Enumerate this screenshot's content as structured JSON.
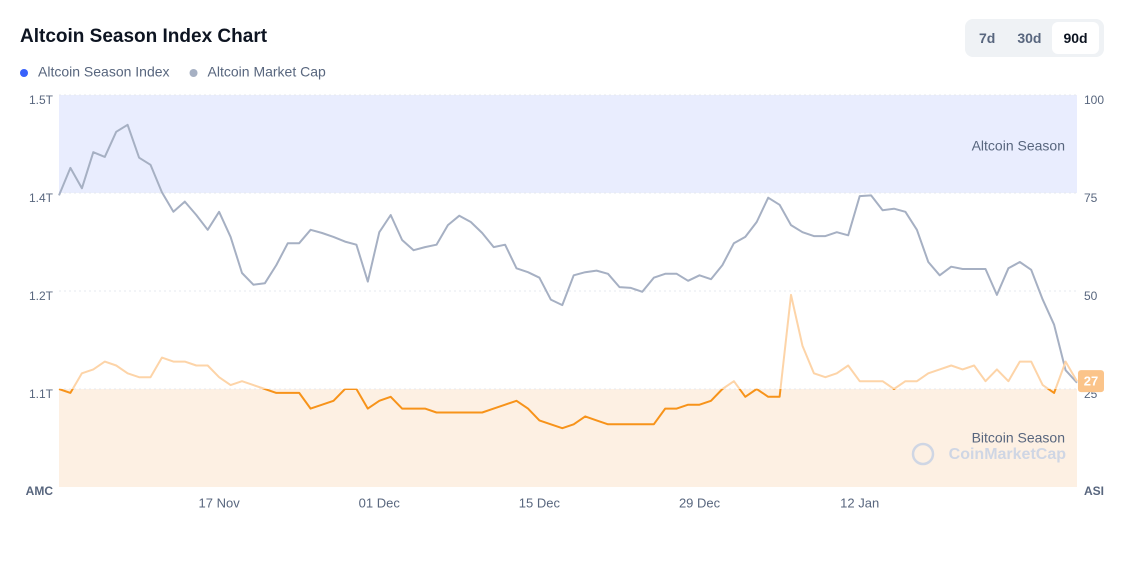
{
  "header": {
    "title": "Altcoin Season Index Chart"
  },
  "controls": {
    "ranges": [
      "7d",
      "30d",
      "90d"
    ],
    "active": 2
  },
  "chart_data": {
    "type": "line",
    "y_label": "AMC",
    "y2_label": "ASI",
    "watermark": "CoinMarketCap",
    "categories": [
      null,
      null,
      null,
      null,
      null,
      null,
      null,
      null,
      null,
      null,
      null,
      null,
      null,
      null,
      "17 Nov",
      null,
      null,
      null,
      null,
      null,
      null,
      null,
      null,
      null,
      null,
      null,
      null,
      null,
      "01 Dec",
      null,
      null,
      null,
      null,
      null,
      null,
      null,
      null,
      null,
      null,
      null,
      null,
      null,
      "15 Dec",
      null,
      null,
      null,
      null,
      null,
      null,
      null,
      null,
      null,
      null,
      null,
      null,
      null,
      "29 Dec",
      null,
      null,
      null,
      null,
      null,
      null,
      null,
      null,
      null,
      null,
      null,
      null,
      null,
      "12 Jan",
      null,
      null,
      null,
      null,
      null,
      null,
      null,
      null,
      null,
      null,
      null,
      null,
      null,
      null,
      null,
      null,
      null,
      null,
      null
    ],
    "ylim": [
      0.975,
      1.475
    ],
    "yticks": [
      {
        "value": 1.1,
        "label": "1.1T"
      },
      {
        "value": 1.225,
        "label": "1.2T"
      },
      {
        "value": 1.35,
        "label": "1.4T"
      },
      {
        "value": 1.475,
        "label": "1.5T"
      }
    ],
    "y2lim": [
      0,
      100
    ],
    "y2ticks": [
      25,
      50,
      75,
      100
    ],
    "grid": true,
    "bands": [
      {
        "label": "Altcoin Season",
        "from": 75,
        "to": 100,
        "color": "#e9edfe",
        "text_position": "top"
      },
      {
        "label": "Bitcoin Season",
        "from": 0,
        "to": 25,
        "color": "#fdf0e3",
        "text_position": "bottom"
      }
    ],
    "series": [
      {
        "name": "Altcoin Season Index",
        "axis": "y2",
        "legend_color": "#3861fb",
        "color": "#f7931a",
        "color_outside_band": "#fdd4a8",
        "badge_color": "#fbc48a",
        "values": [
          25,
          24,
          29,
          30,
          32,
          31,
          29,
          28,
          28,
          33,
          32,
          32,
          31,
          31,
          28,
          26,
          27,
          26,
          25,
          24,
          24,
          24,
          20,
          21,
          22,
          25,
          25,
          20,
          22,
          23,
          20,
          20,
          20,
          19,
          19,
          19,
          19,
          19,
          20,
          21,
          22,
          20,
          17,
          16,
          15,
          16,
          18,
          17,
          16,
          16,
          16,
          16,
          16,
          20,
          20,
          21,
          21,
          22,
          25,
          27,
          23,
          25,
          23,
          23,
          49,
          36,
          29,
          28,
          29,
          31,
          27,
          27,
          27,
          25,
          27,
          27,
          29,
          30,
          31,
          30,
          31,
          27,
          30,
          27,
          32,
          32,
          26,
          24,
          32,
          27
        ]
      },
      {
        "name": "Altcoin Market Cap",
        "legend_color": "#a6b0c3",
        "color": "#a6b0c3",
        "values": [
          1.347,
          1.382,
          1.356,
          1.402,
          1.396,
          1.428,
          1.437,
          1.395,
          1.386,
          1.351,
          1.326,
          1.339,
          1.322,
          1.303,
          1.326,
          1.294,
          1.248,
          1.233,
          1.235,
          1.258,
          1.286,
          1.286,
          1.303,
          1.299,
          1.294,
          1.288,
          1.284,
          1.237,
          1.3,
          1.322,
          1.29,
          1.277,
          1.281,
          1.284,
          1.309,
          1.321,
          1.313,
          1.299,
          1.281,
          1.284,
          1.254,
          1.249,
          1.242,
          1.214,
          1.207,
          1.245,
          1.249,
          1.251,
          1.247,
          1.23,
          1.229,
          1.224,
          1.242,
          1.247,
          1.247,
          1.238,
          1.245,
          1.24,
          1.258,
          1.286,
          1.294,
          1.313,
          1.344,
          1.335,
          1.309,
          1.3,
          1.295,
          1.295,
          1.3,
          1.296,
          1.346,
          1.347,
          1.328,
          1.33,
          1.326,
          1.303,
          1.262,
          1.245,
          1.256,
          1.253,
          1.253,
          1.253,
          1.22,
          1.254,
          1.262,
          1.252,
          1.214,
          1.182,
          1.124,
          1.108
        ]
      }
    ]
  }
}
